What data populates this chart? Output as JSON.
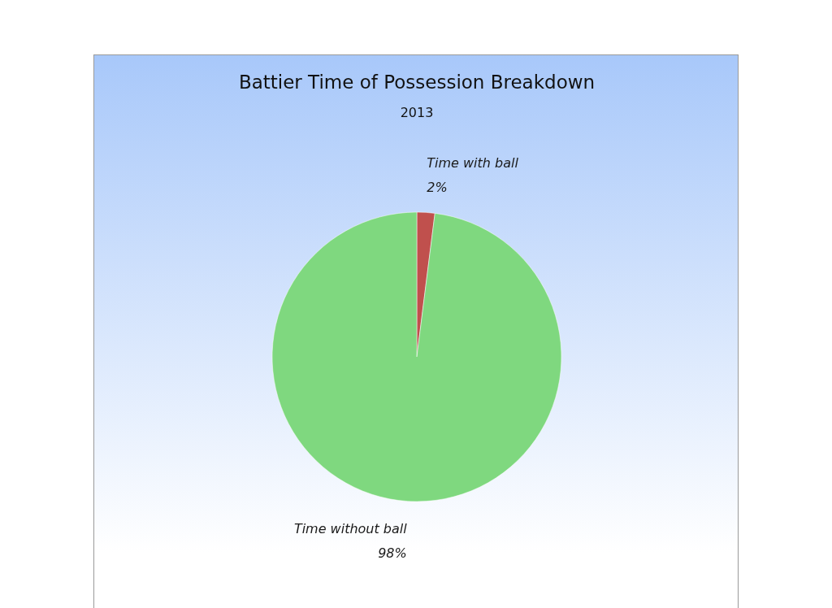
{
  "chart_data": {
    "type": "pie",
    "title": "Battier Time of Possession Breakdown",
    "subtitle": "2013",
    "categories": [
      "Time with ball",
      "Time without ball"
    ],
    "values": [
      2,
      98
    ],
    "colors": [
      "#c0504d",
      "#7fd87f"
    ],
    "value_labels": [
      "2%",
      "98%"
    ],
    "legend": false
  }
}
